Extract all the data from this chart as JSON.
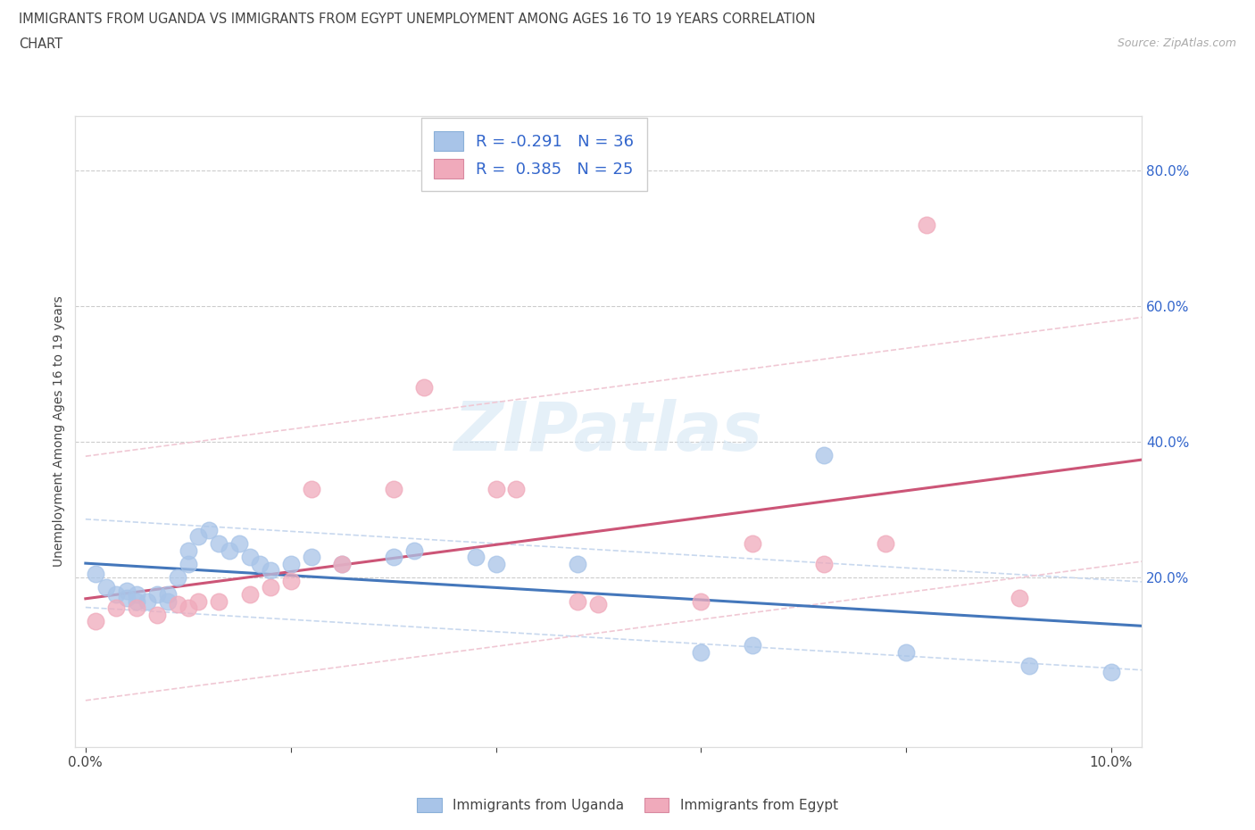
{
  "title_line1": "IMMIGRANTS FROM UGANDA VS IMMIGRANTS FROM EGYPT UNEMPLOYMENT AMONG AGES 16 TO 19 YEARS CORRELATION",
  "title_line2": "CHART",
  "source_text": "Source: ZipAtlas.com",
  "ylabel": "Unemployment Among Ages 16 to 19 years",
  "xlim_min": -0.001,
  "xlim_max": 0.103,
  "ylim_min": -0.05,
  "ylim_max": 0.88,
  "legend_uganda": "Immigrants from Uganda",
  "legend_egypt": "Immigrants from Egypt",
  "R_uganda": "-0.291",
  "N_uganda": "36",
  "R_egypt": "0.385",
  "N_egypt": "25",
  "uganda_scatter_color": "#a8c4e8",
  "egypt_scatter_color": "#f0aabb",
  "uganda_line_color": "#4477bb",
  "egypt_line_color": "#cc5577",
  "ci_color_uganda": "#c8d8ee",
  "ci_color_egypt": "#f0c8d4",
  "watermark_text": "ZIPatlas",
  "ytick_right_vals": [
    0.2,
    0.4,
    0.6,
    0.8
  ],
  "ytick_right_labels": [
    "20.0%",
    "40.0%",
    "60.0%",
    "80.0%"
  ],
  "xtick_vals": [
    0.0,
    0.02,
    0.04,
    0.06,
    0.08,
    0.1
  ],
  "xtick_labels": [
    "0.0%",
    "",
    "",
    "",
    "",
    "10.0%"
  ],
  "uganda_x": [
    0.001,
    0.002,
    0.003,
    0.004,
    0.004,
    0.005,
    0.005,
    0.006,
    0.007,
    0.008,
    0.008,
    0.009,
    0.01,
    0.01,
    0.011,
    0.012,
    0.013,
    0.014,
    0.015,
    0.016,
    0.017,
    0.018,
    0.02,
    0.022,
    0.025,
    0.03,
    0.032,
    0.038,
    0.04,
    0.048,
    0.06,
    0.065,
    0.072,
    0.08,
    0.092,
    0.1
  ],
  "uganda_y": [
    0.205,
    0.185,
    0.175,
    0.18,
    0.17,
    0.175,
    0.165,
    0.165,
    0.175,
    0.175,
    0.165,
    0.2,
    0.22,
    0.24,
    0.26,
    0.27,
    0.25,
    0.24,
    0.25,
    0.23,
    0.22,
    0.21,
    0.22,
    0.23,
    0.22,
    0.23,
    0.24,
    0.23,
    0.22,
    0.22,
    0.09,
    0.1,
    0.38,
    0.09,
    0.07,
    0.06
  ],
  "egypt_x": [
    0.001,
    0.003,
    0.005,
    0.007,
    0.009,
    0.01,
    0.011,
    0.013,
    0.016,
    0.018,
    0.02,
    0.022,
    0.025,
    0.03,
    0.033,
    0.04,
    0.042,
    0.048,
    0.05,
    0.06,
    0.065,
    0.072,
    0.078,
    0.082,
    0.091
  ],
  "egypt_y": [
    0.135,
    0.155,
    0.155,
    0.145,
    0.16,
    0.155,
    0.165,
    0.165,
    0.175,
    0.185,
    0.195,
    0.33,
    0.22,
    0.33,
    0.48,
    0.33,
    0.33,
    0.165,
    0.16,
    0.165,
    0.25,
    0.22,
    0.25,
    0.72,
    0.17
  ]
}
